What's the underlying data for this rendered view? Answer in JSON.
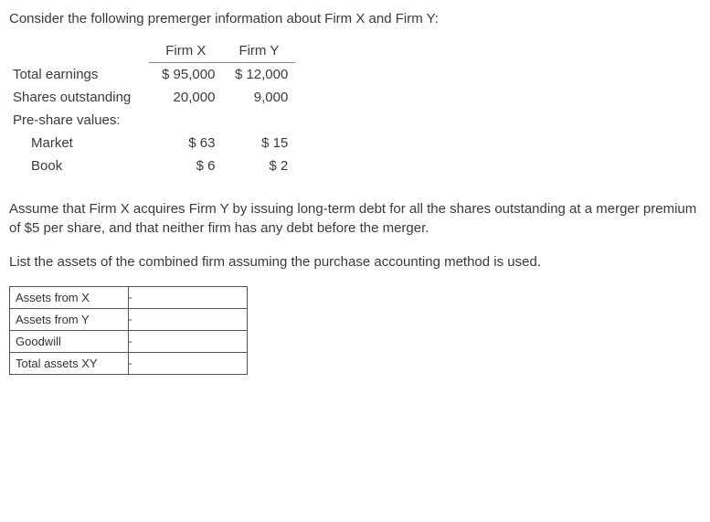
{
  "intro": "Consider the following premerger information about Firm X and Firm Y:",
  "dataTable": {
    "headers": {
      "blank": "",
      "firmX": "Firm X",
      "firmY": "Firm Y"
    },
    "rows": [
      {
        "label": "Total earnings",
        "x": "$ 95,000",
        "y": "$ 12,000",
        "indent": false
      },
      {
        "label": "Shares outstanding",
        "x": "20,000",
        "y": "9,000",
        "indent": false
      },
      {
        "label": "Pre-share values:",
        "x": "",
        "y": "",
        "indent": false
      },
      {
        "label": "Market",
        "x": "$ 63",
        "y": "$ 15",
        "indent": true
      },
      {
        "label": "Book",
        "x": "$ 6",
        "y": "$ 2",
        "indent": true
      }
    ]
  },
  "paragraph1": "Assume that Firm X acquires Firm Y by issuing long-term debt for all the shares outstanding at a merger premium of $5 per share, and that neither firm has any debt before the merger.",
  "paragraph2": "List the assets of the combined firm assuming the purchase accounting method is used.",
  "answerTable": {
    "rows": [
      {
        "label": "Assets from X",
        "value": ""
      },
      {
        "label": "Assets from Y",
        "value": ""
      },
      {
        "label": "Goodwill",
        "value": ""
      },
      {
        "label": "Total assets XY",
        "value": ""
      }
    ]
  },
  "colors": {
    "text": "#3a3a3a",
    "border": "#555555",
    "background": "#ffffff"
  }
}
